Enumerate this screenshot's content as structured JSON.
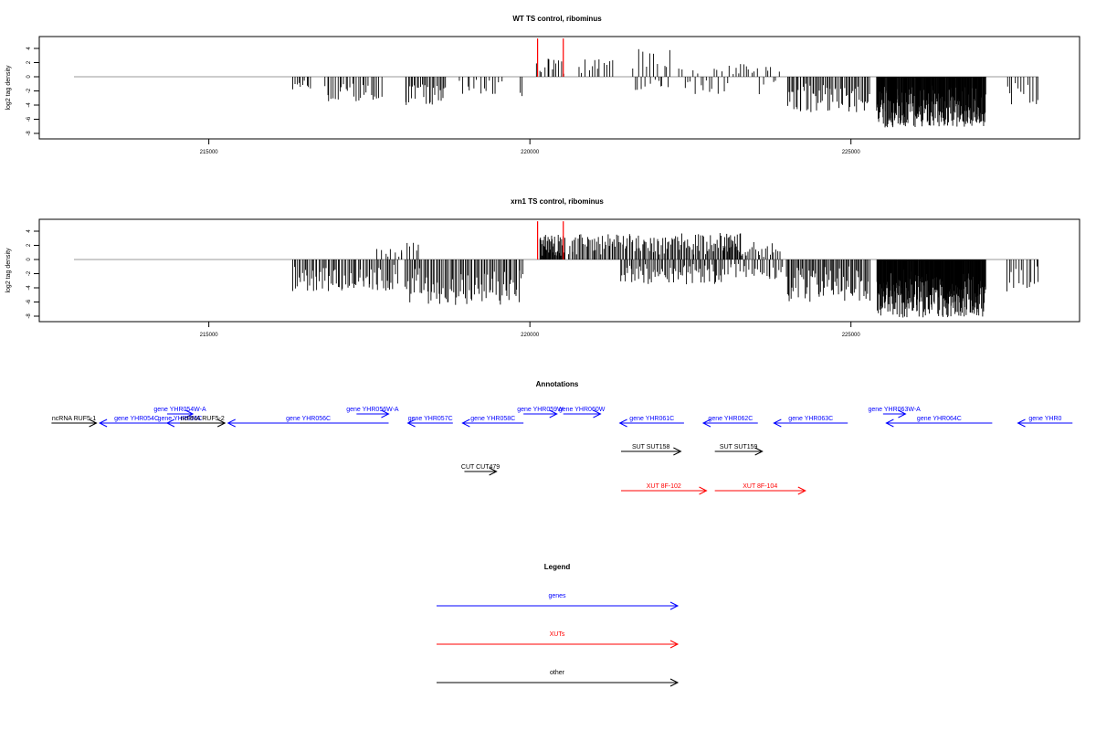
{
  "chart_data": [
    {
      "type": "bar",
      "title": "WT TS control, ribominus",
      "ylabel": "log2 tag density",
      "xlabel": "",
      "xlim": [
        212600,
        228100
      ],
      "ylim": [
        -8,
        5.5
      ],
      "yticks": [
        -8,
        -6,
        -4,
        -2,
        0,
        2,
        4
      ],
      "xticks": [
        215000,
        220000,
        225000
      ],
      "grid": false,
      "baseline_color": "#999999",
      "bar_color": "#000000",
      "highlight_color": "#ff0000",
      "highlights": [
        {
          "x": 220120,
          "value": 5.4
        },
        {
          "x": 220520,
          "value": 5.4
        }
      ],
      "regions": [
        {
          "start": 216300,
          "end": 216600,
          "min": -2.0,
          "max": 0,
          "count": 10
        },
        {
          "start": 216800,
          "end": 217700,
          "min": -4.0,
          "max": 0,
          "count": 28
        },
        {
          "start": 218050,
          "end": 218700,
          "min": -4.0,
          "max": 0,
          "count": 28
        },
        {
          "start": 218900,
          "end": 219600,
          "min": -2.5,
          "max": 0,
          "count": 14
        },
        {
          "start": 219800,
          "end": 219950,
          "min": -3.0,
          "max": 0,
          "count": 2
        },
        {
          "start": 220100,
          "end": 220550,
          "min": 0,
          "max": 2.8,
          "count": 12
        },
        {
          "start": 220750,
          "end": 221300,
          "min": 0,
          "max": 2.5,
          "count": 12
        },
        {
          "start": 221600,
          "end": 222200,
          "min": -2.0,
          "max": 4.0,
          "count": 20
        },
        {
          "start": 222300,
          "end": 223900,
          "min": -2.5,
          "max": 1.8,
          "count": 38
        },
        {
          "start": 224000,
          "end": 225300,
          "min": -5.0,
          "max": 0,
          "count": 60
        },
        {
          "start": 225400,
          "end": 227100,
          "min": -7.2,
          "max": 0,
          "count": 230
        },
        {
          "start": 227400,
          "end": 227950,
          "min": -4.0,
          "max": 0,
          "count": 12
        }
      ]
    },
    {
      "type": "bar",
      "title": "xrn1 TS control, ribominus",
      "ylabel": "log2 tag density",
      "xlabel": "",
      "xlim": [
        212600,
        228100
      ],
      "ylim": [
        -8,
        5.5
      ],
      "yticks": [
        -8,
        -6,
        -4,
        -2,
        0,
        2,
        4
      ],
      "xticks": [
        215000,
        220000,
        225000
      ],
      "grid": false,
      "baseline_color": "#999999",
      "bar_color": "#000000",
      "highlight_color": "#ff0000",
      "highlights": [
        {
          "x": 220120,
          "value": 5.4
        },
        {
          "x": 220520,
          "value": 5.4
        }
      ],
      "regions": [
        {
          "start": 216300,
          "end": 217950,
          "min": -4.5,
          "max": 0,
          "count": 70
        },
        {
          "start": 217600,
          "end": 218050,
          "min": 0,
          "max": 2.0,
          "count": 8
        },
        {
          "start": 218000,
          "end": 218300,
          "min": 0,
          "max": 2.8,
          "count": 6
        },
        {
          "start": 218050,
          "end": 219900,
          "min": -6.5,
          "max": 0,
          "count": 85
        },
        {
          "start": 220150,
          "end": 220550,
          "min": 0,
          "max": 3.5,
          "count": 40
        },
        {
          "start": 220600,
          "end": 223300,
          "min": 0,
          "max": 3.8,
          "count": 130
        },
        {
          "start": 221400,
          "end": 223000,
          "min": -3.5,
          "max": 0,
          "count": 70
        },
        {
          "start": 223000,
          "end": 223900,
          "min": 0,
          "max": 2.5,
          "count": 30
        },
        {
          "start": 223000,
          "end": 224000,
          "min": -2.8,
          "max": 0,
          "count": 30
        },
        {
          "start": 224000,
          "end": 225300,
          "min": -6.0,
          "max": 0,
          "count": 70
        },
        {
          "start": 225400,
          "end": 227100,
          "min": -8.2,
          "max": 0,
          "count": 260
        },
        {
          "start": 227400,
          "end": 227950,
          "min": -4.5,
          "max": 0,
          "count": 14
        }
      ]
    }
  ],
  "annotations": {
    "title": "Annotations",
    "items": [
      {
        "label": "ncRNA RUF5-1",
        "start": 212550,
        "end": 213250,
        "dir": "+",
        "color": "#000000",
        "row": 1
      },
      {
        "label": "gene YHR054C",
        "start": 213300,
        "end": 214450,
        "dir": "-",
        "color": "#0000ff",
        "row": 1
      },
      {
        "label": "gene YHR054W-A",
        "start": 214350,
        "end": 214750,
        "dir": "+",
        "color": "#0000ff",
        "row": 0
      },
      {
        "label": "gene YHR055C",
        "start": 214350,
        "end": 214750,
        "dir": "-",
        "color": "#0000ff",
        "row": 1
      },
      {
        "label": "ncRNA RUF5-2",
        "start": 214550,
        "end": 215250,
        "dir": "+",
        "color": "#000000",
        "row": 1
      },
      {
        "label": "gene YHR056C",
        "start": 215300,
        "end": 217800,
        "dir": "-",
        "color": "#0000ff",
        "row": 1
      },
      {
        "label": "gene YHR056W-A",
        "start": 217300,
        "end": 217800,
        "dir": "+",
        "color": "#0000ff",
        "row": 0
      },
      {
        "label": "gene YHR057C",
        "start": 218100,
        "end": 218800,
        "dir": "-",
        "color": "#0000ff",
        "row": 1
      },
      {
        "label": "gene YHR058C",
        "start": 218950,
        "end": 219900,
        "dir": "-",
        "color": "#0000ff",
        "row": 1
      },
      {
        "label": "gene YHR059W",
        "start": 219900,
        "end": 220420,
        "dir": "+",
        "color": "#0000ff",
        "row": 0
      },
      {
        "label": "gene YHR060W",
        "start": 220520,
        "end": 221100,
        "dir": "+",
        "color": "#0000ff",
        "row": 0
      },
      {
        "label": "gene YHR061C",
        "start": 221400,
        "end": 222400,
        "dir": "-",
        "color": "#0000ff",
        "row": 1
      },
      {
        "label": "gene YHR062C",
        "start": 222700,
        "end": 223550,
        "dir": "-",
        "color": "#0000ff",
        "row": 1
      },
      {
        "label": "gene YHR063C",
        "start": 223800,
        "end": 224950,
        "dir": "-",
        "color": "#0000ff",
        "row": 1
      },
      {
        "label": "gene YHR063W-A",
        "start": 225500,
        "end": 225850,
        "dir": "+",
        "color": "#0000ff",
        "row": 0
      },
      {
        "label": "gene YHR064C",
        "start": 225550,
        "end": 227200,
        "dir": "-",
        "color": "#0000ff",
        "row": 1
      },
      {
        "label": "gene YHR0",
        "start": 227600,
        "end": 228450,
        "dir": "-",
        "color": "#0000ff",
        "row": 1
      },
      {
        "label": "SUT SUT158",
        "start": 221420,
        "end": 222350,
        "dir": "+",
        "color": "#000000",
        "row": 2
      },
      {
        "label": "SUT SUT159",
        "start": 222880,
        "end": 223620,
        "dir": "+",
        "color": "#000000",
        "row": 2
      },
      {
        "label": "CUT CUT479",
        "start": 218980,
        "end": 219480,
        "dir": "+",
        "color": "#000000",
        "row": 3
      },
      {
        "label": "XUT 8F-102",
        "start": 221420,
        "end": 222750,
        "dir": "+",
        "color": "#ff0000",
        "row": 4
      },
      {
        "label": "XUT 8F-104",
        "start": 222880,
        "end": 224290,
        "dir": "+",
        "color": "#ff0000",
        "row": 4
      }
    ]
  },
  "legend": {
    "title": "Legend",
    "items": [
      {
        "label": "genes",
        "color": "#0000ff"
      },
      {
        "label": "XUTs",
        "color": "#ff0000"
      },
      {
        "label": "other",
        "color": "#000000"
      }
    ]
  }
}
